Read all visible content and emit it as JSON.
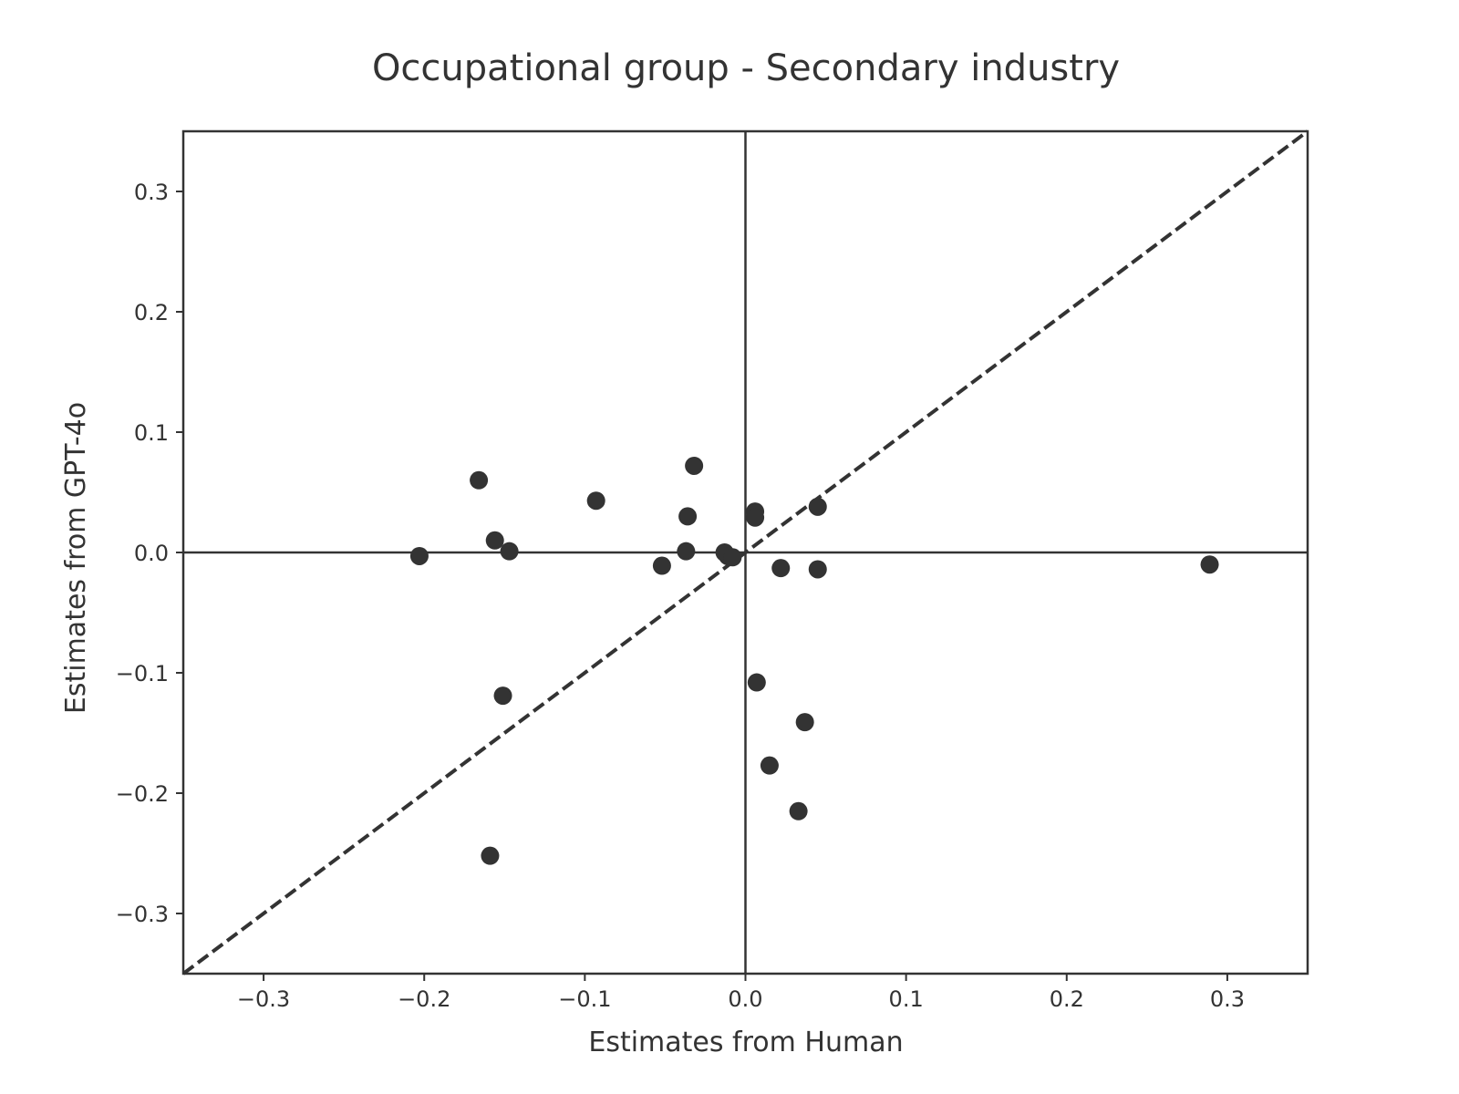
{
  "chart_data": {
    "type": "scatter",
    "title": "Occupational group - Secondary industry",
    "xlabel": "Estimates from Human",
    "ylabel": "Estimates from GPT-4o",
    "xlim": [
      -0.35,
      0.35
    ],
    "ylim": [
      -0.35,
      0.35
    ],
    "xticks": [
      -0.3,
      -0.2,
      -0.1,
      0.0,
      0.1,
      0.2,
      0.3
    ],
    "yticks": [
      -0.3,
      -0.2,
      -0.1,
      0.0,
      0.1,
      0.2,
      0.3
    ],
    "xtick_labels": [
      "−0.3",
      "−0.2",
      "−0.1",
      "0.0",
      "0.1",
      "0.2",
      "0.3"
    ],
    "ytick_labels": [
      "−0.3",
      "−0.2",
      "−0.1",
      "0.0",
      "0.1",
      "0.2",
      "0.3"
    ],
    "grid": false,
    "reference_lines": [
      "x=0",
      "y=0",
      "y=x dashed"
    ],
    "marker_color": "#333333",
    "points": [
      {
        "x": -0.166,
        "y": 0.06
      },
      {
        "x": -0.093,
        "y": 0.043
      },
      {
        "x": -0.032,
        "y": 0.072
      },
      {
        "x": -0.036,
        "y": 0.03
      },
      {
        "x": -0.156,
        "y": 0.01
      },
      {
        "x": -0.147,
        "y": 0.001
      },
      {
        "x": -0.203,
        "y": -0.003
      },
      {
        "x": -0.037,
        "y": 0.001
      },
      {
        "x": -0.052,
        "y": -0.011
      },
      {
        "x": -0.013,
        "y": 0.0
      },
      {
        "x": -0.011,
        "y": -0.003
      },
      {
        "x": -0.008,
        "y": -0.004
      },
      {
        "x": 0.006,
        "y": 0.034
      },
      {
        "x": 0.006,
        "y": 0.029
      },
      {
        "x": 0.045,
        "y": 0.038
      },
      {
        "x": 0.022,
        "y": -0.013
      },
      {
        "x": 0.045,
        "y": -0.014
      },
      {
        "x": 0.289,
        "y": -0.01
      },
      {
        "x": 0.007,
        "y": -0.108
      },
      {
        "x": -0.151,
        "y": -0.119
      },
      {
        "x": 0.037,
        "y": -0.141
      },
      {
        "x": 0.015,
        "y": -0.177
      },
      {
        "x": 0.033,
        "y": -0.215
      },
      {
        "x": -0.159,
        "y": -0.252
      }
    ]
  }
}
